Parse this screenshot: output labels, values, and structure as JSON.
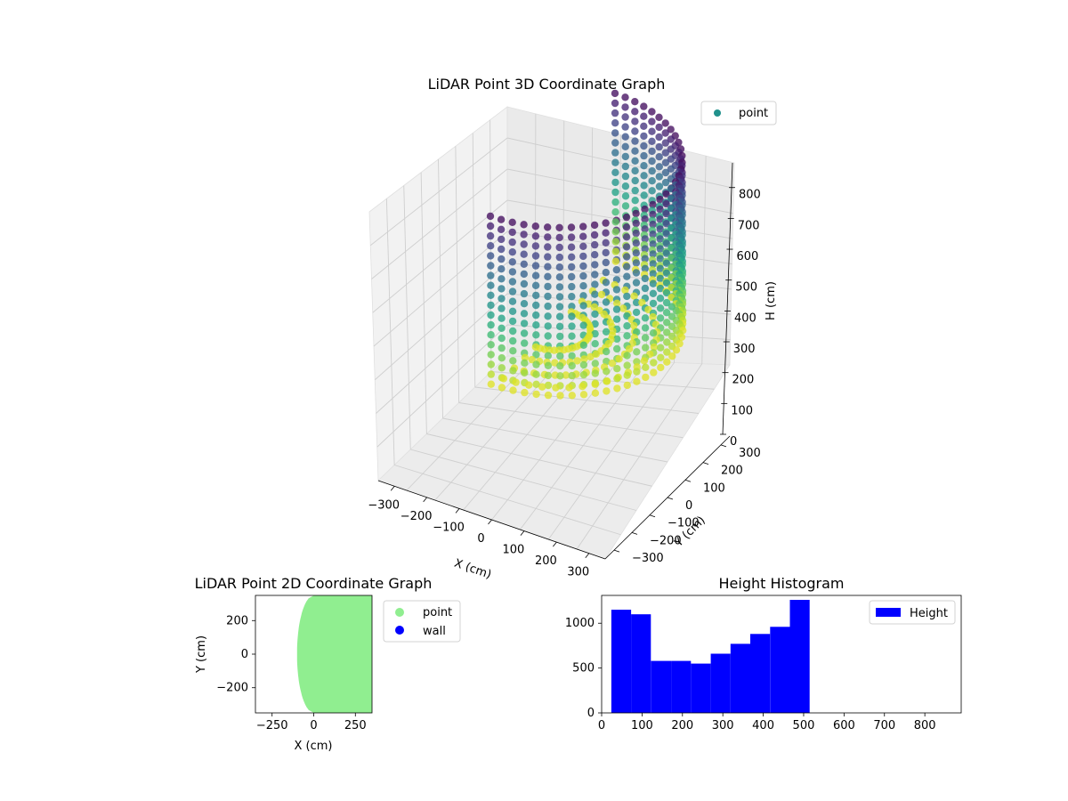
{
  "chart_data": [
    {
      "type": "scatter",
      "projection": "3d",
      "title": "LiDAR Point 3D Coordinate Graph",
      "xlabel": "X (cm)",
      "ylabel": "Y (cm)",
      "zlabel": "H (cm)",
      "xticks": [
        "−300",
        "−200",
        "−100",
        "0",
        "100",
        "200",
        "300"
      ],
      "yticks": [
        "−300",
        "−200",
        "−100",
        "0",
        "100",
        "200",
        "300"
      ],
      "zticks": [
        "0",
        "100",
        "200",
        "300",
        "400",
        "500",
        "600",
        "700",
        "800"
      ],
      "xlim": [
        -350,
        350
      ],
      "ylim": [
        -350,
        350
      ],
      "zlim": [
        0,
        880
      ],
      "z_inverted": true,
      "colormap": "viridis",
      "grid": true,
      "legend": {
        "position": "top-right",
        "entries": [
          {
            "label": "point",
            "color": "#21918c"
          }
        ]
      },
      "series": [
        {
          "name": "point",
          "shape": "half-cylinder wall, x ≥ 0, radius ≈ 350, heights 0–520, points colored by height"
        }
      ]
    },
    {
      "type": "scatter",
      "title": "LiDAR Point 2D Coordinate Graph",
      "xlabel": "X (cm)",
      "ylabel": "Y (cm)",
      "xticks": [
        "−250",
        "0",
        "250"
      ],
      "yticks": [
        "200",
        "0",
        "−200"
      ],
      "xlim": [
        -350,
        350
      ],
      "ylim": [
        -350,
        350
      ],
      "grid": false,
      "legend": {
        "position": "right",
        "entries": [
          {
            "label": "point",
            "color": "#90ee90"
          },
          {
            "label": "wall",
            "color": "#0000ff"
          }
        ]
      },
      "series": [
        {
          "name": "point",
          "color": "#90ee90",
          "shape": "filled half-disk x ≥ −100"
        }
      ]
    },
    {
      "type": "bar",
      "subtype": "histogram",
      "title": "Height Histogram",
      "xlabel": "",
      "ylabel": "",
      "xticks": [
        "0",
        "100",
        "200",
        "300",
        "400",
        "500",
        "600",
        "700",
        "800"
      ],
      "yticks": [
        "0",
        "500",
        "1000"
      ],
      "xlim": [
        0,
        890
      ],
      "ylim": [
        0,
        1310
      ],
      "color": "#0000ff",
      "legend": {
        "position": "top-right",
        "entries": [
          {
            "label": "Height",
            "color": "#0000ff"
          }
        ]
      },
      "bins": [
        {
          "x0": 24,
          "x1": 73,
          "value": 1150
        },
        {
          "x0": 73,
          "x1": 122,
          "value": 1100
        },
        {
          "x0": 122,
          "x1": 172,
          "value": 580
        },
        {
          "x0": 172,
          "x1": 221,
          "value": 580
        },
        {
          "x0": 221,
          "x1": 270,
          "value": 550
        },
        {
          "x0": 270,
          "x1": 319,
          "value": 660
        },
        {
          "x0": 319,
          "x1": 368,
          "value": 770
        },
        {
          "x0": 368,
          "x1": 417,
          "value": 880
        },
        {
          "x0": 417,
          "x1": 466,
          "value": 960
        },
        {
          "x0": 466,
          "x1": 515,
          "value": 1260
        }
      ]
    }
  ]
}
